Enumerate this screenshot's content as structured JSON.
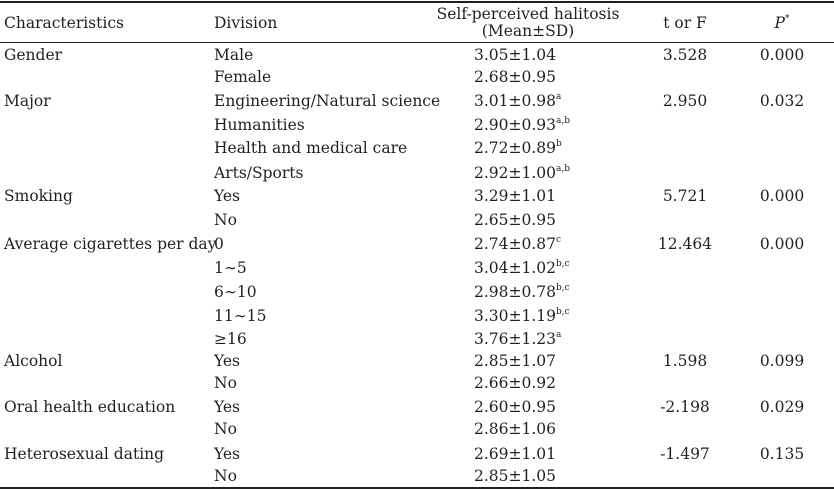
{
  "header": {
    "characteristics": "Characteristics",
    "division": "Division",
    "mean_line1": "Self-perceived halitosis",
    "mean_line2": "(Mean±SD)",
    "t_or_f": "t or F",
    "p_letter": "P",
    "p_sup": "*"
  },
  "rows": [
    {
      "characteristic": "Gender",
      "division": "Male",
      "mean": "3.05±1.04",
      "sup": "",
      "t": "3.528",
      "p": "0.000"
    },
    {
      "characteristic": "",
      "division": "Female",
      "mean": "2.68±0.95",
      "sup": "",
      "t": "",
      "p": ""
    },
    {
      "characteristic": "Major",
      "division": "Engineering/Natural science",
      "mean": "3.01±0.98",
      "sup": "a",
      "t": "2.950",
      "p": "0.032"
    },
    {
      "characteristic": "",
      "division": "Humanities",
      "mean": "2.90±0.93",
      "sup": "a,b",
      "t": "",
      "p": ""
    },
    {
      "characteristic": "",
      "division": "Health and medical care",
      "mean": "2.72±0.89",
      "sup": "b",
      "t": "",
      "p": ""
    },
    {
      "characteristic": "",
      "division": "Arts/Sports",
      "mean": "2.92±1.00",
      "sup": "a,b",
      "t": "",
      "p": ""
    },
    {
      "characteristic": "Smoking",
      "division": "Yes",
      "mean": "3.29±1.01",
      "sup": "",
      "t": "5.721",
      "p": "0.000"
    },
    {
      "characteristic": "",
      "division": "No",
      "mean": "2.65±0.95",
      "sup": "",
      "t": "",
      "p": ""
    },
    {
      "characteristic": "Average  cigarettes per day",
      "division": "0",
      "mean": "2.74±0.87",
      "sup": "c",
      "t": "12.464",
      "p": "0.000"
    },
    {
      "characteristic": "",
      "division": "1∼5",
      "mean": "3.04±1.02",
      "sup": "b,c",
      "t": "",
      "p": ""
    },
    {
      "characteristic": "",
      "division": "6∼10",
      "mean": "2.98±0.78",
      "sup": "b,c",
      "t": "",
      "p": ""
    },
    {
      "characteristic": "",
      "division": "11∼15",
      "mean": "3.30±1.19",
      "sup": "b,c",
      "t": "",
      "p": ""
    },
    {
      "characteristic": "",
      "division": "≥16",
      "mean": "3.76±1.23",
      "sup": "a",
      "t": "",
      "p": ""
    },
    {
      "characteristic": "Alcohol",
      "division": "Yes",
      "mean": "2.85±1.07",
      "sup": "",
      "t": "1.598",
      "p": "0.099"
    },
    {
      "characteristic": "",
      "division": "No",
      "mean": "2.66±0.92",
      "sup": "",
      "t": "",
      "p": ""
    },
    {
      "characteristic": "Oral health education",
      "division": "Yes",
      "mean": "2.60±0.95",
      "sup": "",
      "t": "-2.198",
      "p": "0.029"
    },
    {
      "characteristic": "",
      "division": "No",
      "mean": "2.86±1.06",
      "sup": "",
      "t": "",
      "p": ""
    },
    {
      "characteristic": "Heterosexual dating",
      "division": "Yes",
      "mean": "2.69±1.01",
      "sup": "",
      "t": "-1.497",
      "p": "0.135"
    },
    {
      "characteristic": "",
      "division": "No",
      "mean": "2.85±1.05",
      "sup": "",
      "t": "",
      "p": ""
    }
  ]
}
